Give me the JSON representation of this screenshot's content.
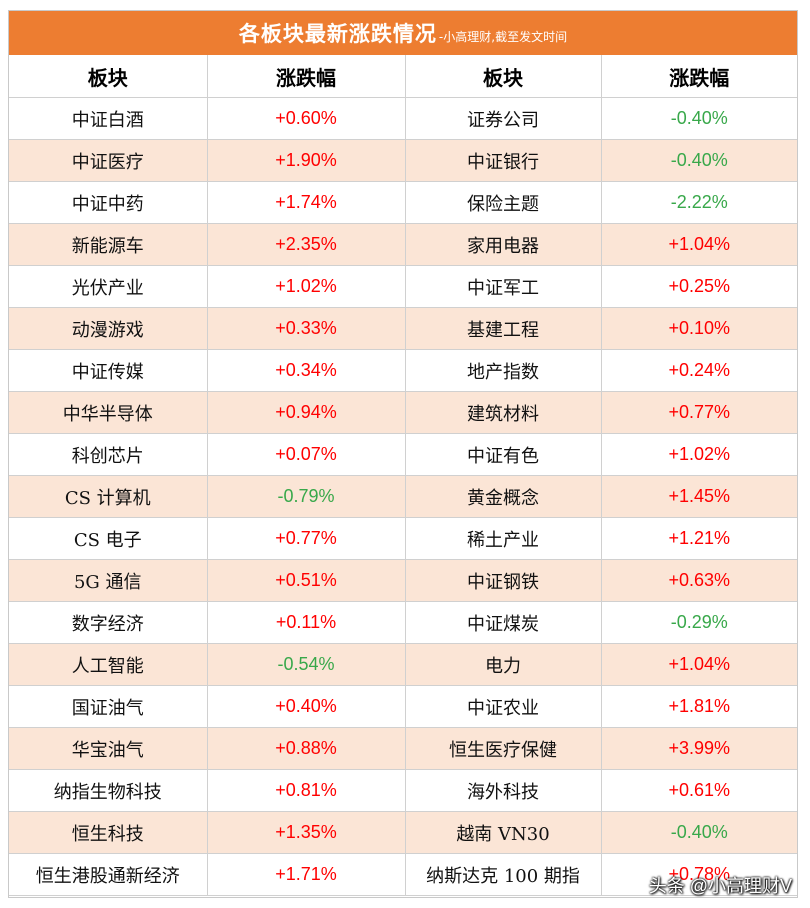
{
  "title": {
    "main": "各板块最新涨跌情况",
    "sub": "-小高理财,截至发文时间"
  },
  "headers": [
    "板块",
    "涨跌幅",
    "板块",
    "涨跌幅"
  ],
  "colors": {
    "accent": "#ed7d31",
    "stripe": "#fbe5d6",
    "up": "#ff0000",
    "down": "#38a84a"
  },
  "rows": [
    {
      "left_name": "中证白酒",
      "left_change": "+0.60%",
      "right_name": "证券公司",
      "right_change": "-0.40%"
    },
    {
      "left_name": "中证医疗",
      "left_change": "+1.90%",
      "right_name": "中证银行",
      "right_change": "-0.40%"
    },
    {
      "left_name": "中证中药",
      "left_change": "+1.74%",
      "right_name": "保险主题",
      "right_change": "-2.22%"
    },
    {
      "left_name": "新能源车",
      "left_change": "+2.35%",
      "right_name": "家用电器",
      "right_change": "+1.04%"
    },
    {
      "left_name": "光伏产业",
      "left_change": "+1.02%",
      "right_name": "中证军工",
      "right_change": "+0.25%"
    },
    {
      "left_name": "动漫游戏",
      "left_change": "+0.33%",
      "right_name": "基建工程",
      "right_change": "+0.10%"
    },
    {
      "left_name": "中证传媒",
      "left_change": "+0.34%",
      "right_name": "地产指数",
      "right_change": "+0.24%"
    },
    {
      "left_name": "中华半导体",
      "left_change": "+0.94%",
      "right_name": "建筑材料",
      "right_change": "+0.77%"
    },
    {
      "left_name": "科创芯片",
      "left_change": "+0.07%",
      "right_name": "中证有色",
      "right_change": "+1.02%"
    },
    {
      "left_name": "CS 计算机",
      "left_change": "-0.79%",
      "right_name": "黄金概念",
      "right_change": "+1.45%"
    },
    {
      "left_name": "CS 电子",
      "left_change": "+0.77%",
      "right_name": "稀土产业",
      "right_change": "+1.21%"
    },
    {
      "left_name": "5G 通信",
      "left_change": "+0.51%",
      "right_name": "中证钢铁",
      "right_change": "+0.63%"
    },
    {
      "left_name": "数字经济",
      "left_change": "+0.11%",
      "right_name": "中证煤炭",
      "right_change": "-0.29%"
    },
    {
      "left_name": "人工智能",
      "left_change": "-0.54%",
      "right_name": "电力",
      "right_change": "+1.04%"
    },
    {
      "left_name": "国证油气",
      "left_change": "+0.40%",
      "right_name": "中证农业",
      "right_change": "+1.81%"
    },
    {
      "left_name": "华宝油气",
      "left_change": "+0.88%",
      "right_name": "恒生医疗保健",
      "right_change": "+3.99%"
    },
    {
      "left_name": "纳指生物科技",
      "left_change": "+0.81%",
      "right_name": "海外科技",
      "right_change": "+0.61%"
    },
    {
      "left_name": "恒生科技",
      "left_change": "+1.35%",
      "right_name": "越南 VN30",
      "right_change": "-0.40%"
    },
    {
      "left_name": "恒生港股通新经济",
      "left_change": "+1.71%",
      "right_name": "纳斯达克 100 期指",
      "right_change": "+0.78%"
    }
  ],
  "watermark": "头条 @小高理财V"
}
